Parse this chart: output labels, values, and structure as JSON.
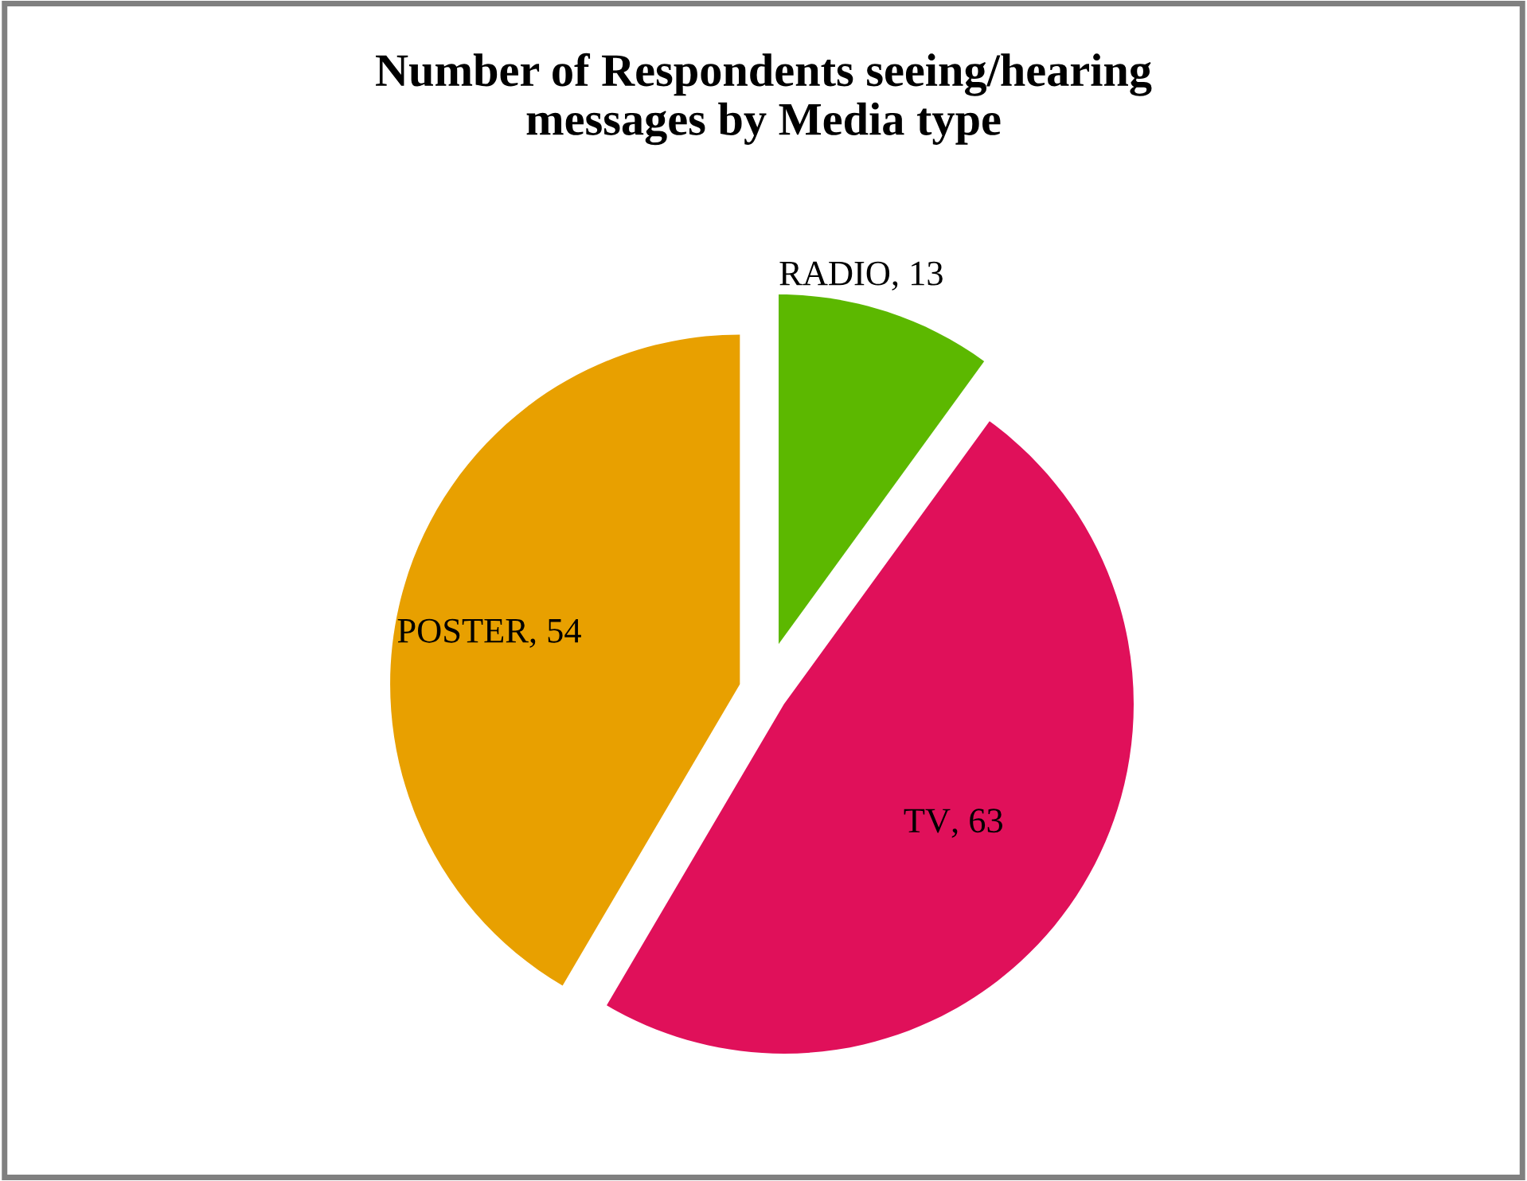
{
  "chart_data": {
    "type": "pie",
    "title": "Number of Respondents seeing/hearing\nmessages by Media type",
    "categories": [
      "RADIO",
      "TV",
      "POSTER"
    ],
    "values": [
      13,
      63,
      54
    ],
    "colors": [
      "#5cb800",
      "#e0105a",
      "#e8a000"
    ],
    "value_labels": [
      ", 13",
      ", 63",
      ", 54"
    ]
  }
}
